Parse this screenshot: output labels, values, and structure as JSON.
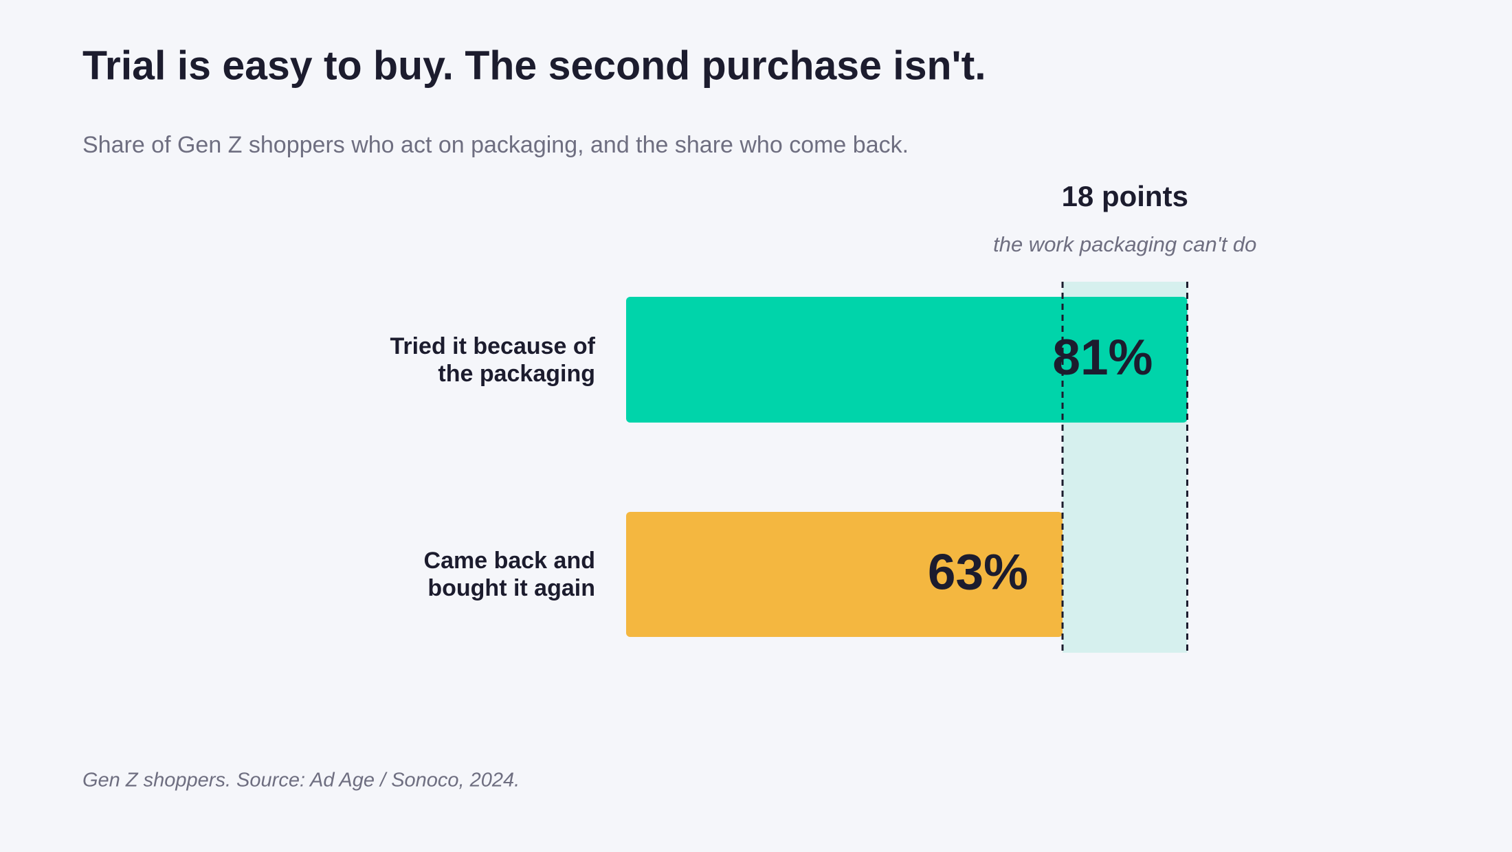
{
  "chart_data": {
    "type": "hbar",
    "title": "Trial is easy to buy. The second purchase isn't.",
    "subtitle": "Share of Gen Z shoppers who act on packaging, and the share who come back.",
    "annotation": {
      "title": "18 points",
      "subtitle": "the work packaging can't do"
    },
    "footnote": "Gen Z shoppers. Source: Ad Age / Sonoco, 2024.",
    "categories": [
      "Tried it because of the packaging",
      "Came back and bought it again"
    ],
    "values": [
      81,
      63
    ],
    "value_labels": [
      "81%",
      "63%"
    ],
    "colors": [
      "#00d4aa",
      "#f4b740"
    ],
    "xlim": [
      0,
      100
    ]
  }
}
